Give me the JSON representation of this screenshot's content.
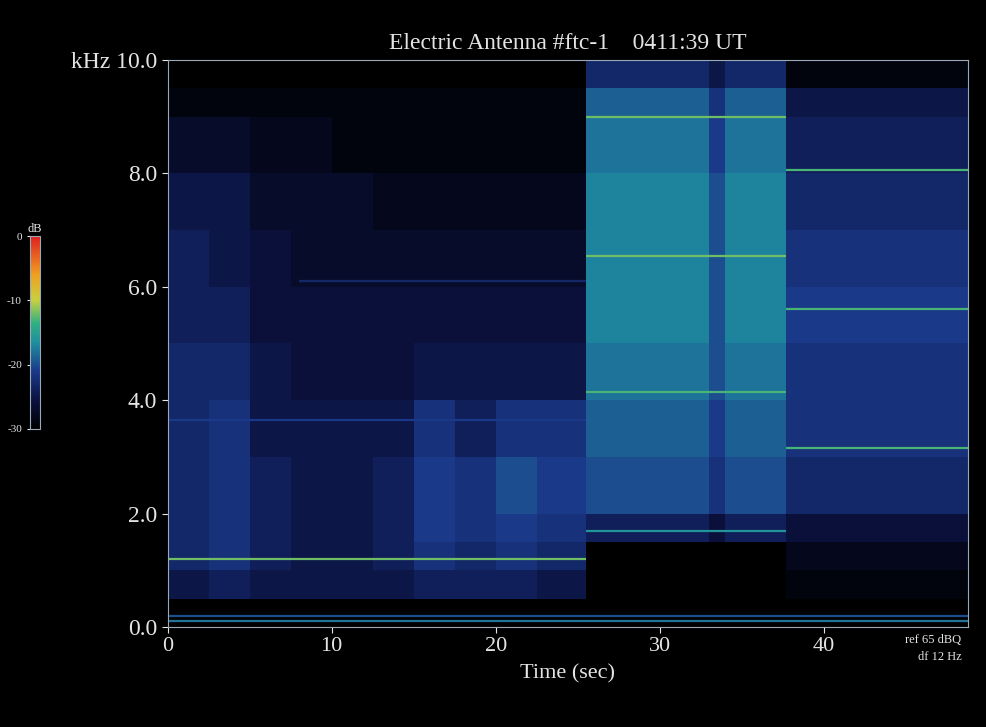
{
  "chart_data": {
    "type": "heatmap",
    "title": "Electric Antenna #ftc-1    0411:39 UT",
    "x_label": "Time (sec)",
    "x": [
      0,
      2.5,
      5,
      7.5,
      10,
      12.5,
      15,
      17.5,
      20,
      22.5,
      25.5,
      29,
      33,
      34,
      37.7,
      41,
      45,
      48.8
    ],
    "y": [
      0,
      0.5,
      1,
      1.5,
      2,
      3,
      4,
      5,
      6,
      7,
      8,
      9,
      9.5,
      10
    ],
    "cells": [
      [
        -30,
        -30,
        -30,
        -30,
        -30,
        -30,
        -30,
        -30,
        -30,
        -30,
        -30,
        -30,
        -30,
        -30,
        -30,
        -30,
        -30
      ],
      [
        -25,
        -24,
        -25,
        -25,
        -25,
        -25,
        -24,
        -24,
        -24,
        -25,
        -30,
        -30,
        -30,
        -30,
        -29,
        -29,
        -29
      ],
      [
        -23,
        -22,
        -24,
        -25,
        -25,
        -24,
        -22,
        -23,
        -22,
        -23,
        -30,
        -30,
        -30,
        -30,
        -28,
        -28,
        -28
      ],
      [
        -23,
        -22,
        -24,
        -25,
        -25,
        -24,
        -21,
        -22,
        -21,
        -22,
        -24,
        -24,
        -26,
        -24,
        -26,
        -26,
        -26
      ],
      [
        -23,
        -22,
        -24,
        -25,
        -25,
        -24,
        -21,
        -22,
        -20,
        -21,
        -20,
        -20,
        -22,
        -20,
        -23,
        -23,
        -23
      ],
      [
        -23,
        -22,
        -25,
        -25,
        -25,
        -25,
        -22,
        -24,
        -22,
        -22,
        -19,
        -19,
        -21,
        -19,
        -22,
        -22,
        -22
      ],
      [
        -23,
        -23,
        -25,
        -26,
        -26,
        -26,
        -25,
        -25,
        -25,
        -25,
        -18,
        -18,
        -20,
        -18,
        -22,
        -22,
        -22
      ],
      [
        -24,
        -24,
        -26,
        -26,
        -26,
        -26,
        -26,
        -26,
        -26,
        -26,
        -17,
        -17,
        -20,
        -17,
        -21,
        -21,
        -21
      ],
      [
        -24,
        -25,
        -26,
        -27,
        -27,
        -27,
        -27,
        -27,
        -27,
        -27,
        -17,
        -17,
        -20,
        -17,
        -22,
        -22,
        -22
      ],
      [
        -25,
        -25,
        -27,
        -27,
        -27,
        -28,
        -28,
        -28,
        -28,
        -28,
        -17,
        -17,
        -20,
        -17,
        -23,
        -23,
        -23
      ],
      [
        -27,
        -27,
        -28,
        -28,
        -29,
        -29,
        -29,
        -29,
        -29,
        -29,
        -18,
        -18,
        -21,
        -18,
        -24,
        -24,
        -24
      ],
      [
        -29,
        -29,
        -29,
        -29,
        -29,
        -29,
        -29,
        -29,
        -29,
        -29,
        -19,
        -19,
        -22,
        -19,
        -25,
        -25,
        -25
      ],
      [
        -30,
        -30,
        -30,
        -30,
        -30,
        -30,
        -30,
        -30,
        -30,
        -30,
        -23,
        -23,
        -25,
        -23,
        -29,
        -29,
        -29
      ]
    ],
    "lines": [
      {
        "f": 1.2,
        "t": [
          0,
          25.5
        ],
        "db": -12
      },
      {
        "f": 3.65,
        "t": [
          0,
          25.5
        ],
        "db": -21
      },
      {
        "f": 6.1,
        "t": [
          8,
          25.5
        ],
        "db": -23
      },
      {
        "f": 0.1,
        "t": [
          0,
          48.8
        ],
        "db": -18
      },
      {
        "f": 0.2,
        "t": [
          0,
          48.8
        ],
        "db": -20
      },
      {
        "f": 9.0,
        "t": [
          25.5,
          37.7
        ],
        "db": -12
      },
      {
        "f": 6.55,
        "t": [
          25.5,
          37.7
        ],
        "db": -12
      },
      {
        "f": 4.15,
        "t": [
          25.5,
          37.7
        ],
        "db": -13
      },
      {
        "f": 1.7,
        "t": [
          25.5,
          37.7
        ],
        "db": -16
      },
      {
        "f": 8.05,
        "t": [
          37.7,
          48.8
        ],
        "db": -13
      },
      {
        "f": 5.6,
        "t": [
          37.7,
          48.8
        ],
        "db": -13
      },
      {
        "f": 3.15,
        "t": [
          37.7,
          48.8
        ],
        "db": -13
      }
    ],
    "xlim": [
      0,
      48.8
    ],
    "ylim": [
      0,
      10
    ],
    "xticks": [
      0,
      10,
      20,
      30,
      40
    ],
    "yticks": [
      {
        "value": 0,
        "label": "0.0"
      },
      {
        "value": 2,
        "label": "2.0"
      },
      {
        "value": 4,
        "label": "4.0"
      },
      {
        "value": 6,
        "label": "6.0"
      },
      {
        "value": 8,
        "label": "8.0"
      },
      {
        "value": 10,
        "label": "kHz 10.0"
      }
    ],
    "colorbar": {
      "label": "dB",
      "lim": [
        -30,
        0
      ],
      "ticks": [
        0,
        -10,
        -20,
        -30
      ]
    },
    "notes": [
      "ref 65 dBQ",
      "df 12 Hz"
    ]
  }
}
